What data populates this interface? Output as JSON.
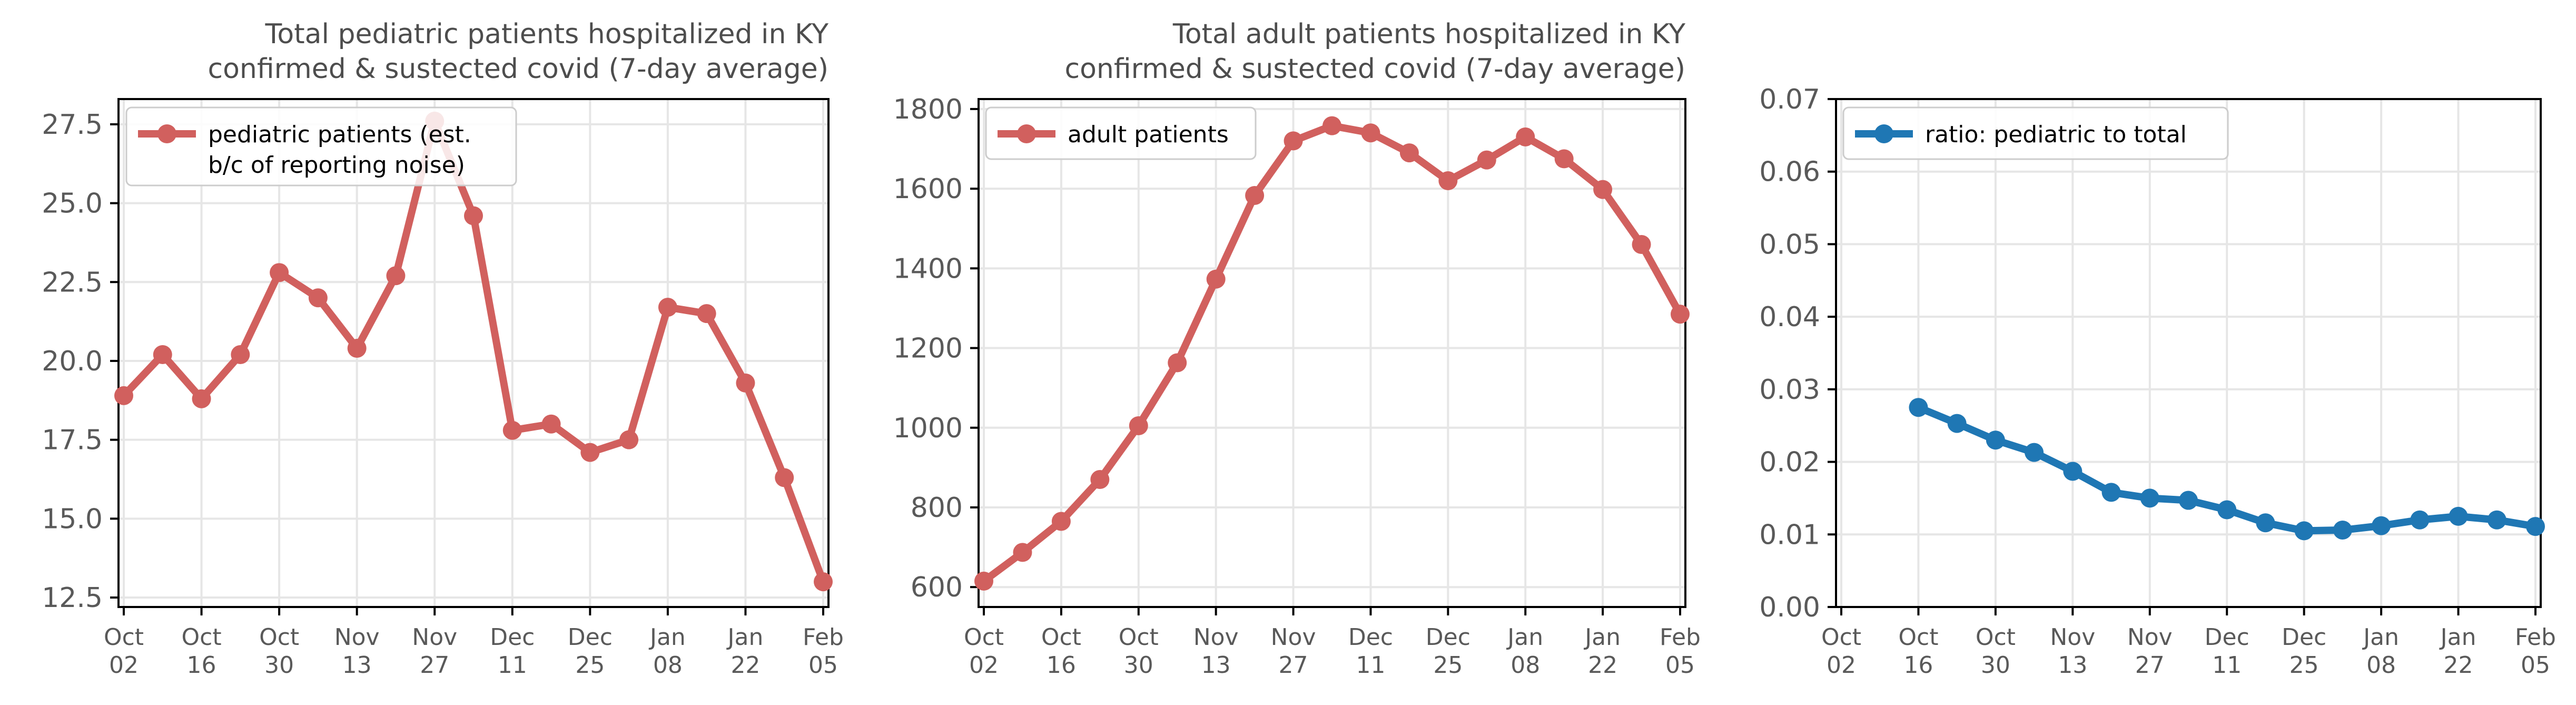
{
  "x_labels": [
    "Oct\n02",
    "Oct\n16",
    "Oct\n30",
    "Nov\n13",
    "Nov\n27",
    "Dec\n11",
    "Dec\n25",
    "Jan\n08",
    "Jan\n22",
    "Feb\n05"
  ],
  "chart_data": [
    {
      "type": "line",
      "title": [
        "Total pediatric patients hospitalized in KY",
        "confirmed & sustected covid (7-day average)"
      ],
      "x": [
        "2020-10-02",
        "2020-10-09",
        "2020-10-16",
        "2020-10-23",
        "2020-10-30",
        "2020-11-06",
        "2020-11-13",
        "2020-11-20",
        "2020-11-27",
        "2020-12-04",
        "2020-12-11",
        "2020-12-18",
        "2020-12-25",
        "2021-01-01",
        "2021-01-08",
        "2021-01-15",
        "2021-01-22",
        "2021-01-29",
        "2021-02-05"
      ],
      "series": [
        {
          "name": "pediatric patients (est.\nb/c of reporting noise)",
          "color": "#d1605e",
          "values": [
            18.9,
            20.2,
            18.8,
            20.2,
            22.8,
            22.0,
            20.4,
            22.7,
            27.6,
            24.6,
            17.8,
            18.0,
            17.1,
            17.5,
            21.7,
            21.5,
            19.3,
            16.3,
            13.0
          ]
        }
      ],
      "ylim": [
        12.2,
        28.3
      ],
      "yticks": [
        12.5,
        15.0,
        17.5,
        20.0,
        22.5,
        25.0,
        27.5
      ],
      "ytick_labels": [
        "12.5",
        "15.0",
        "17.5",
        "20.0",
        "22.5",
        "25.0",
        "27.5"
      ],
      "legend_position": "upper-left",
      "grid": true
    },
    {
      "type": "line",
      "title": [
        "Total adult patients hospitalized in KY",
        "confirmed & sustected covid (7-day average)"
      ],
      "x": [
        "2020-10-02",
        "2020-10-09",
        "2020-10-16",
        "2020-10-23",
        "2020-10-30",
        "2020-11-06",
        "2020-11-13",
        "2020-11-20",
        "2020-11-27",
        "2020-12-04",
        "2020-12-11",
        "2020-12-18",
        "2020-12-25",
        "2021-01-01",
        "2021-01-08",
        "2021-01-15",
        "2021-01-22",
        "2021-01-29",
        "2021-02-05"
      ],
      "series": [
        {
          "name": "adult patients",
          "color": "#d1605e",
          "values": [
            615,
            687,
            765,
            870,
            1005,
            1163,
            1373,
            1583,
            1720,
            1758,
            1740,
            1690,
            1620,
            1672,
            1730,
            1675,
            1598,
            1460,
            1285
          ]
        }
      ],
      "ylim": [
        550,
        1825
      ],
      "yticks": [
        600,
        800,
        1000,
        1200,
        1400,
        1600,
        1800
      ],
      "ytick_labels": [
        "600",
        "800",
        "1000",
        "1200",
        "1400",
        "1600",
        "1800"
      ],
      "legend_position": "upper-left",
      "grid": true
    },
    {
      "type": "line",
      "title": [],
      "x": [
        "2020-10-16",
        "2020-10-23",
        "2020-10-30",
        "2020-11-06",
        "2020-11-13",
        "2020-11-20",
        "2020-11-27",
        "2020-12-04",
        "2020-12-11",
        "2020-12-18",
        "2020-12-25",
        "2021-01-01",
        "2021-01-08",
        "2021-01-15",
        "2021-01-22",
        "2021-01-29",
        "2021-02-05"
      ],
      "series": [
        {
          "name": "ratio: pediatric to total",
          "color": "#1f77b4",
          "values": [
            0.0275,
            0.0253,
            0.023,
            0.0213,
            0.0187,
            0.0158,
            0.015,
            0.0147,
            0.0134,
            0.0116,
            0.0105,
            0.0106,
            0.0112,
            0.012,
            0.0125,
            0.012,
            0.0111
          ]
        }
      ],
      "ylim": [
        0.0,
        0.07
      ],
      "yticks": [
        0.0,
        0.01,
        0.02,
        0.03,
        0.04,
        0.05,
        0.06,
        0.07
      ],
      "ytick_labels": [
        "0.00",
        "0.01",
        "0.02",
        "0.03",
        "0.04",
        "0.05",
        "0.06",
        "0.07"
      ],
      "legend_position": "upper-left",
      "grid": true
    }
  ]
}
